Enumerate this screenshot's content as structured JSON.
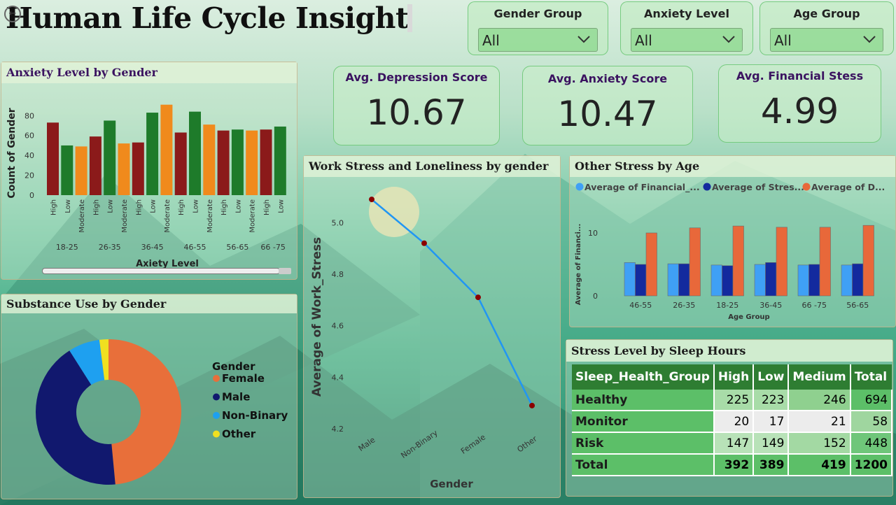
{
  "title": "Human Life Cycle Insight",
  "slicers": [
    {
      "label": "Gender Group",
      "value": "All"
    },
    {
      "label": "Anxiety Level",
      "value": "All"
    },
    {
      "label": "Age Group",
      "value": "All"
    }
  ],
  "kpis": [
    {
      "label": "Avg. Depression Score",
      "value": "10.67"
    },
    {
      "label": "Avg. Anxiety Score",
      "value": "10.47"
    },
    {
      "label": "Avg. Financial Stess",
      "value": "4.99"
    }
  ],
  "colors": {
    "high": "#8b1a1a",
    "low": "#1e7b2a",
    "moderate": "#f08a1c",
    "female": "#e86f3a",
    "male": "#11186e",
    "nonbinary": "#1ea0f0",
    "other": "#f0e020",
    "line": "#2196f3",
    "point": "#8b0000"
  },
  "chart_data": [
    {
      "type": "bar",
      "title": "Anxiety Level by Gender",
      "xlabel": "Axiety Level",
      "ylabel": "Count of Gender",
      "ylim": [
        0,
        95
      ],
      "yticks": [
        "0",
        "20",
        "40",
        "60",
        "80"
      ],
      "groups": [
        "18-25",
        "26-35",
        "36-45",
        "46-55",
        "56-65",
        "66 -75"
      ],
      "bars": [
        {
          "group": "18-25",
          "level": "High",
          "value": 73
        },
        {
          "group": "18-25",
          "level": "Low",
          "value": 50
        },
        {
          "group": "18-25",
          "level": "Moderate",
          "value": 49
        },
        {
          "group": "26-35",
          "level": "High",
          "value": 59
        },
        {
          "group": "26-35",
          "level": "Low",
          "value": 75
        },
        {
          "group": "26-35",
          "level": "Moderate",
          "value": 52
        },
        {
          "group": "36-45",
          "level": "High",
          "value": 53
        },
        {
          "group": "36-45",
          "level": "Low",
          "value": 83
        },
        {
          "group": "36-45",
          "level": "Moderate",
          "value": 91
        },
        {
          "group": "46-55",
          "level": "High",
          "value": 63
        },
        {
          "group": "46-55",
          "level": "Low",
          "value": 84
        },
        {
          "group": "46-55",
          "level": "Moderate",
          "value": 71
        },
        {
          "group": "56-65",
          "level": "High",
          "value": 65
        },
        {
          "group": "56-65",
          "level": "Low",
          "value": 66
        },
        {
          "group": "56-65",
          "level": "Moderate",
          "value": 65
        },
        {
          "group": "66 -75",
          "level": "High",
          "value": 66
        },
        {
          "group": "66 -75",
          "level": "Low",
          "value": 69
        }
      ]
    },
    {
      "type": "pie",
      "title": "Substance Use by Gender",
      "legend_title": "Gender",
      "slices": [
        {
          "name": "Female",
          "value": 48.5
        },
        {
          "name": "Male",
          "value": 42.5
        },
        {
          "name": "Non-Binary",
          "value": 7.0
        },
        {
          "name": "Other",
          "value": 2.0
        }
      ]
    },
    {
      "type": "line",
      "title": "Work Stress and Loneliness by gender",
      "xlabel": "Gender",
      "ylabel": "Average of Work_Stress",
      "ylim": [
        4.2,
        5.15
      ],
      "yticks": [
        "4.2",
        "4.4",
        "4.6",
        "4.8",
        "5.0"
      ],
      "x": [
        "Male",
        "Non-Binary",
        "Female",
        "Other"
      ],
      "values": [
        5.09,
        4.92,
        4.71,
        4.29
      ]
    },
    {
      "type": "bar",
      "title": "Other Stress by Age",
      "xlabel": "Age Group",
      "ylabel": "Average of Financi...",
      "ylim": [
        0,
        12
      ],
      "yticks": [
        "0",
        "10"
      ],
      "categories": [
        "46-55",
        "26-35",
        "18-25",
        "36-45",
        "66 -75",
        "56-65"
      ],
      "series": [
        {
          "name": "Average of Financial_...",
          "color": "#3fa0f5",
          "values": [
            5.3,
            5.1,
            4.9,
            5.0,
            4.9,
            4.9
          ]
        },
        {
          "name": "Average of Stres...",
          "color": "#132a9e",
          "values": [
            5.0,
            5.1,
            4.8,
            5.3,
            5.0,
            5.1
          ]
        },
        {
          "name": "Average of D...",
          "color": "#e8683a",
          "values": [
            10.0,
            10.8,
            11.1,
            10.9,
            10.9,
            11.2
          ]
        }
      ]
    }
  ],
  "stress_table": {
    "title": "Stress Level by Sleep Hours",
    "headers": [
      "Sleep_Health_Group",
      "High",
      "Low",
      "Medium",
      "Total"
    ],
    "rows": [
      {
        "label": "Healthy",
        "high": "225",
        "low": "223",
        "medium": "246",
        "total": "694"
      },
      {
        "label": "Monitor",
        "high": "20",
        "low": "17",
        "medium": "21",
        "total": "58"
      },
      {
        "label": "Risk",
        "high": "147",
        "low": "149",
        "medium": "152",
        "total": "448"
      },
      {
        "label": "Total",
        "high": "392",
        "low": "389",
        "medium": "419",
        "total": "1200"
      }
    ]
  }
}
